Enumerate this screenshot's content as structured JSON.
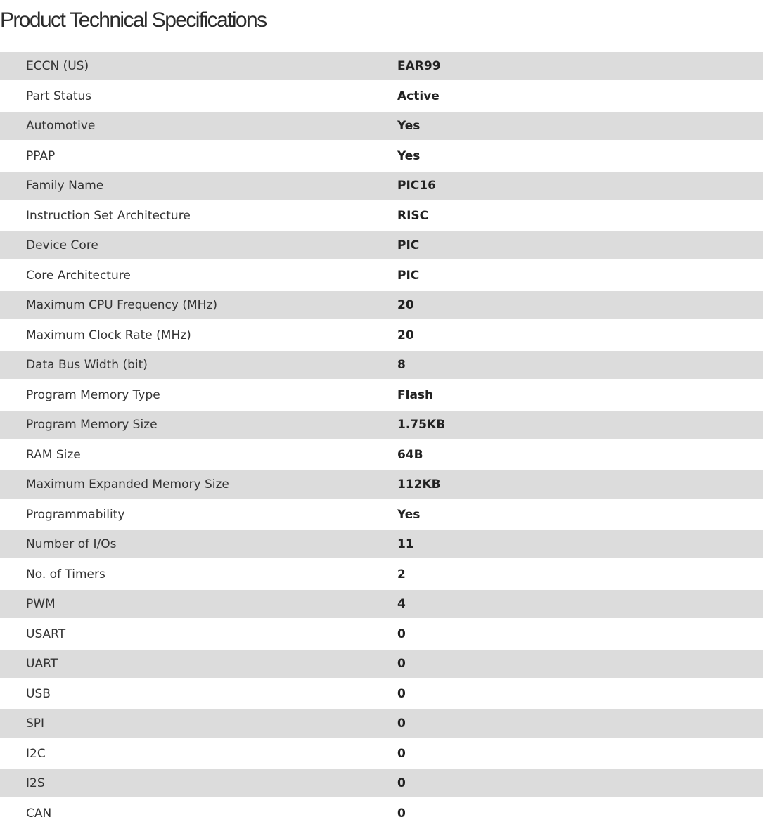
{
  "page_title": "Product Technical Specifications",
  "specs": [
    {
      "label": "ECCN (US)",
      "value": "EAR99"
    },
    {
      "label": "Part Status",
      "value": "Active"
    },
    {
      "label": "Automotive",
      "value": "Yes"
    },
    {
      "label": "PPAP",
      "value": "Yes"
    },
    {
      "label": "Family Name",
      "value": "PIC16"
    },
    {
      "label": "Instruction Set Architecture",
      "value": "RISC"
    },
    {
      "label": "Device Core",
      "value": "PIC"
    },
    {
      "label": "Core Architecture",
      "value": "PIC"
    },
    {
      "label": "Maximum CPU Frequency (MHz)",
      "value": "20"
    },
    {
      "label": "Maximum Clock Rate (MHz)",
      "value": "20"
    },
    {
      "label": "Data Bus Width (bit)",
      "value": "8"
    },
    {
      "label": "Program Memory Type",
      "value": "Flash"
    },
    {
      "label": "Program Memory Size",
      "value": "1.75KB"
    },
    {
      "label": "RAM Size",
      "value": "64B"
    },
    {
      "label": "Maximum Expanded Memory Size",
      "value": "112KB"
    },
    {
      "label": "Programmability",
      "value": "Yes"
    },
    {
      "label": "Number of I/Os",
      "value": "11"
    },
    {
      "label": "No. of Timers",
      "value": "2"
    },
    {
      "label": "PWM",
      "value": "4"
    },
    {
      "label": "USART",
      "value": "0"
    },
    {
      "label": "UART",
      "value": "0"
    },
    {
      "label": "USB",
      "value": "0"
    },
    {
      "label": "SPI",
      "value": "0"
    },
    {
      "label": "I2C",
      "value": "0"
    },
    {
      "label": "I2S",
      "value": "0"
    },
    {
      "label": "CAN",
      "value": "0"
    }
  ]
}
